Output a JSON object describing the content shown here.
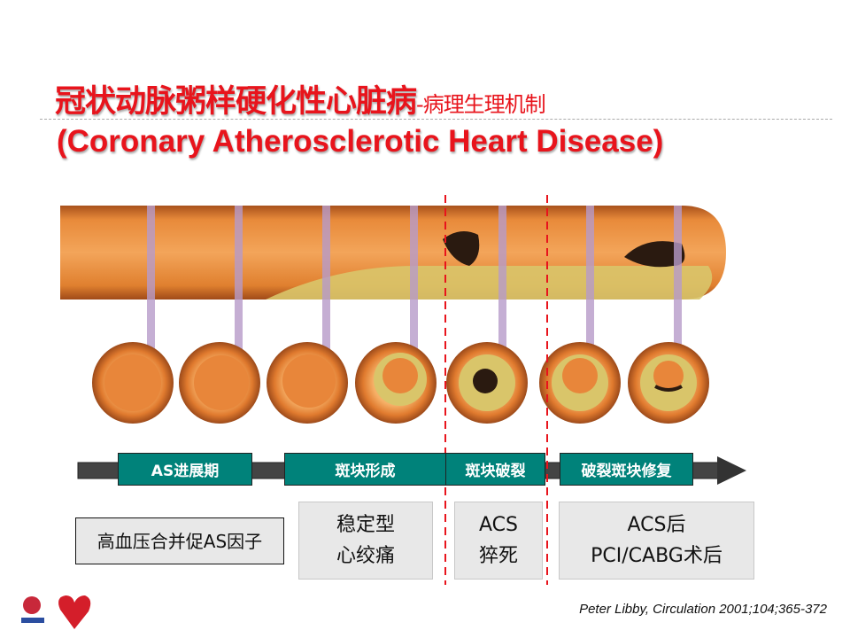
{
  "title": {
    "main": "冠状动脉粥样硬化性心脏病",
    "suffix": "-病理生理机制",
    "english": "(Coronary Atherosclerotic Heart Disease)"
  },
  "stages": [
    {
      "label": "AS进展期"
    },
    {
      "label": "斑块形成"
    },
    {
      "label": "斑块破裂"
    },
    {
      "label": "破裂斑块修复"
    }
  ],
  "clinical": [
    {
      "lines": [
        "高血压合并促AS因子"
      ]
    },
    {
      "lines": [
        "稳定型",
        "心绞痛"
      ]
    },
    {
      "lines": [
        "ACS",
        "猝死"
      ]
    },
    {
      "lines": [
        "ACS后",
        "PCI/CABG术后"
      ]
    }
  ],
  "citation": "Peter Libby, Circulation  2001;104;365-372",
  "colors": {
    "title": "#e8141c",
    "stage": "#00827a",
    "divider_lines": "#e8141c"
  }
}
